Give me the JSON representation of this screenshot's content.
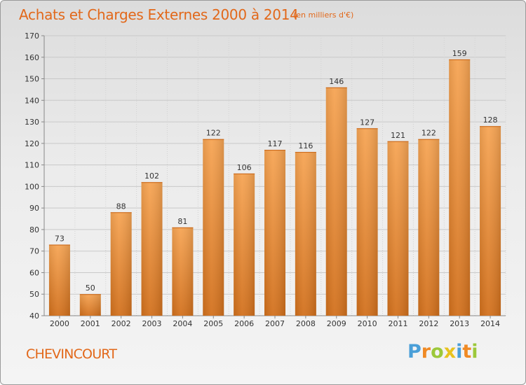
{
  "title": "Achats et Charges Externes 2000 à 2014",
  "subtitle": "(en milliers d'€)",
  "commune": "CHEVINCOURT",
  "logo_text": "Proxiti",
  "colors": {
    "title": "#e2681a",
    "bar_light": "#f6a453",
    "bar_dark": "#d8731e",
    "grid": "#c8c8c8",
    "logo_blue": "#4a9fd8",
    "logo_orange": "#f08a24",
    "logo_green": "#9cc83a",
    "logo_yellow": "#e8c21e"
  },
  "chart_data": {
    "type": "bar",
    "title": "Achats et Charges Externes 2000 à 2014",
    "subtitle": "(en milliers d'€)",
    "xlabel": "",
    "ylabel": "",
    "categories": [
      "2000",
      "2001",
      "2002",
      "2003",
      "2004",
      "2005",
      "2006",
      "2007",
      "2008",
      "2009",
      "2010",
      "2011",
      "2012",
      "2013",
      "2014"
    ],
    "values": [
      73,
      50,
      88,
      102,
      81,
      122,
      106,
      117,
      116,
      146,
      127,
      121,
      122,
      159,
      128
    ],
    "ylim": [
      40,
      170
    ],
    "yticks": [
      40,
      50,
      60,
      70,
      80,
      90,
      100,
      110,
      120,
      130,
      140,
      150,
      160,
      170
    ],
    "grid": true,
    "data_labels": true
  }
}
